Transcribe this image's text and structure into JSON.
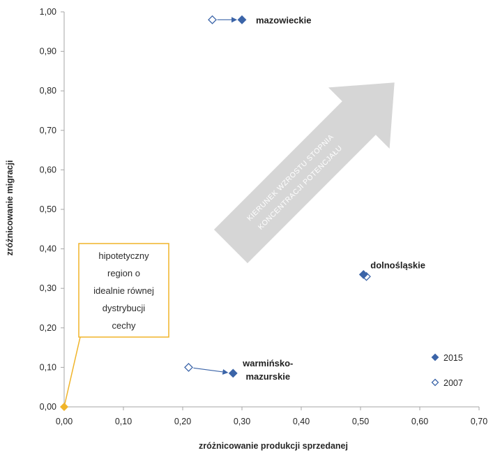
{
  "colors": {
    "series_2015": "#3b64a8",
    "series_2007": "#3b64a8",
    "highlight": "#f0b429",
    "big_arrow": "#d6d6d6",
    "axis": "#a6a6a6",
    "text": "#262626"
  },
  "chart_data": {
    "type": "scatter",
    "xlabel": "zróżnicowanie produkcji sprzedanej",
    "ylabel": "zróżnicowanie migracji",
    "xlim": [
      0,
      0.7
    ],
    "ylim": [
      0,
      1.0
    ],
    "x_ticks": [
      "0,00",
      "0,10",
      "0,20",
      "0,30",
      "0,40",
      "0,50",
      "0,60",
      "0,70"
    ],
    "y_ticks": [
      "0,00",
      "0,10",
      "0,20",
      "0,30",
      "0,40",
      "0,50",
      "0,60",
      "0,70",
      "0,80",
      "0,90",
      "1,00"
    ],
    "grid": false,
    "legend_position": "bottom-right",
    "series": [
      {
        "name": "2015",
        "marker": "diamond-filled",
        "points": [
          {
            "label": "mazowieckie",
            "x": 0.3,
            "y": 0.98
          },
          {
            "label": "dolnośląskie",
            "x": 0.505,
            "y": 0.335
          },
          {
            "label": "warmińsko-mazurskie",
            "x": 0.285,
            "y": 0.085
          }
        ]
      },
      {
        "name": "2007",
        "marker": "diamond-open",
        "points": [
          {
            "label": "mazowieckie",
            "x": 0.25,
            "y": 0.98
          },
          {
            "label": "dolnośląskie",
            "x": 0.51,
            "y": 0.33
          },
          {
            "label": "warmińsko-mazurskie",
            "x": 0.21,
            "y": 0.1
          }
        ]
      }
    ],
    "annotations": {
      "point_labels": [
        {
          "lines": [
            "mazowieckie"
          ]
        },
        {
          "lines": [
            "dolnośląskie"
          ]
        },
        {
          "lines": [
            "warmińsko-",
            "mazurskie"
          ]
        }
      ],
      "ideal_region": {
        "x": 0.0,
        "y": 0.0,
        "text_lines": [
          "hipotetyczny",
          "region o",
          "idealnie równej",
          "dystrybucji",
          "cechy"
        ]
      },
      "big_arrow": {
        "line1": "KIERUNEK WZROSTU STOPNIA",
        "line2": "KONCENTRACJI POTENCJAŁU"
      }
    }
  }
}
